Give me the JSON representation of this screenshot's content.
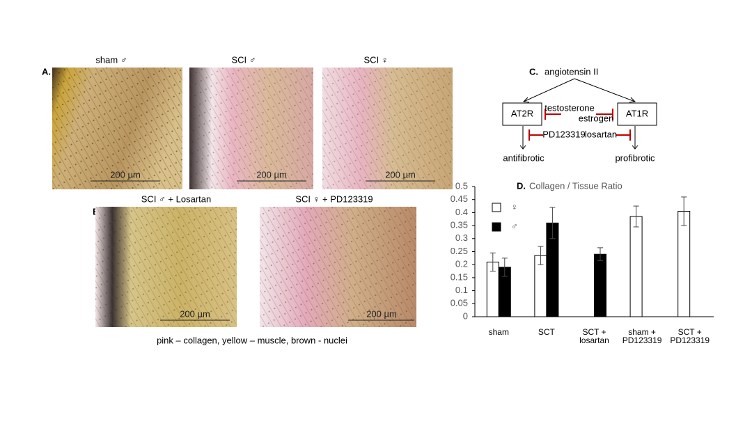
{
  "panel_a": {
    "label": "A.",
    "images": [
      {
        "title": "sham ♂",
        "scale": "200 µm"
      },
      {
        "title": "SCI ♂",
        "scale": "200 µm"
      },
      {
        "title": "SCI ♀",
        "scale": "200 µm"
      }
    ]
  },
  "panel_b": {
    "label": "B.",
    "images": [
      {
        "title": "SCI ♂ + Losartan",
        "scale": "200 µm"
      },
      {
        "title": "SCI ♀ + PD123319",
        "scale": "200 µm"
      }
    ]
  },
  "caption": "pink – collagen, yellow – muscle, brown - nuclei",
  "diagram": {
    "label": "C.",
    "source": "angiotensin II",
    "nodes": [
      "AT2R",
      "AT1R"
    ],
    "inhibitors": [
      "testosterone",
      "estrogen",
      "PD123319",
      "losartan"
    ],
    "outcomes": [
      "antifibrotic",
      "profibrotic"
    ]
  },
  "chart_data": {
    "type": "bar",
    "label": "D.",
    "title": "Collagen / Tissue Ratio",
    "categories": [
      "sham",
      "SCT",
      "SCT + losartan",
      "sham + PD123319",
      "SCT + PD123319"
    ],
    "series": [
      {
        "name": "♀",
        "color": "#ffffff",
        "values": [
          0.21,
          0.235,
          null,
          0.385,
          0.405
        ],
        "errors": [
          0.035,
          0.035,
          null,
          0.04,
          0.055
        ]
      },
      {
        "name": "♂",
        "color": "#000000",
        "values": [
          0.19,
          0.36,
          0.24,
          null,
          null
        ],
        "errors": [
          0.035,
          0.06,
          0.025,
          null,
          null
        ]
      }
    ],
    "ylim": [
      0,
      0.5
    ],
    "yticks": [
      0,
      0.05,
      0.1,
      0.15,
      0.2,
      0.25,
      0.3,
      0.35,
      0.4,
      0.45,
      0.5
    ],
    "grid": false,
    "legend": "upper left"
  }
}
